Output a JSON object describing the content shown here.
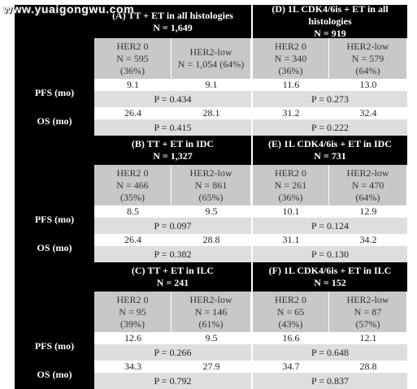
{
  "watermark": "www.yuaigongwu.com",
  "sections": [
    {
      "left": {
        "title": "(A) TT + ET in all histologies",
        "n": "N = 1,649",
        "her2_0": {
          "label": "HER2 0",
          "n": "N = 595",
          "pct": "(36%)"
        },
        "her2_low": {
          "label": "HER2-low",
          "n": "N = 1,054 (64%)"
        },
        "pfs": [
          "9.1",
          "9.1"
        ],
        "pfs_p": "P = 0.434",
        "os": [
          "26.4",
          "28.1"
        ],
        "os_p": "P = 0.415"
      },
      "right": {
        "title": "(D) 1L CDK4/6is + ET in all histologies",
        "n": "N = 919",
        "her2_0": {
          "label": "HER2 0",
          "n": "N = 340",
          "pct": "(36%)"
        },
        "her2_low": {
          "label": "HER2-low",
          "n": "N = 579",
          "pct": "(64%)"
        },
        "pfs": [
          "11.6",
          "13.0"
        ],
        "pfs_p": "P = 0.273",
        "os": [
          "31.2",
          "32.4"
        ],
        "os_p": "P = 0.222"
      }
    },
    {
      "left": {
        "title": "(B) TT + ET in IDC",
        "n": "N = 1,327",
        "her2_0": {
          "label": "HER2 0",
          "n": "N = 466",
          "pct": "(35%)"
        },
        "her2_low": {
          "label": "HER2-low",
          "n": "N = 861",
          "pct": "(65%)"
        },
        "pfs": [
          "8.5",
          "9.5"
        ],
        "pfs_p": "P = 0.097",
        "os": [
          "26.4",
          "28.8"
        ],
        "os_p": "P = 0.382"
      },
      "right": {
        "title": "(E) 1L CDK4/6is + ET in IDC",
        "n": "N = 731",
        "her2_0": {
          "label": "HER2 0",
          "n": "N = 261",
          "pct": "(36%)"
        },
        "her2_low": {
          "label": "HER2-low",
          "n": "N = 470",
          "pct": "(64%)"
        },
        "pfs": [
          "10.1",
          "12.9"
        ],
        "pfs_p": "P = 0.124",
        "os": [
          "31.1",
          "34.2"
        ],
        "os_p": "P = 0.130"
      }
    },
    {
      "left": {
        "title": "(C) TT + ET in ILC",
        "n": "N = 241",
        "her2_0": {
          "label": "HER2 0",
          "n": "N = 95",
          "pct": "(39%)"
        },
        "her2_low": {
          "label": "HER2-low",
          "n": "N = 146",
          "pct": "(61%)"
        },
        "pfs": [
          "12.6",
          "9.5"
        ],
        "pfs_p": "P = 0.266",
        "os": [
          "34.3",
          "27.9"
        ],
        "os_p": "P = 0.792"
      },
      "right": {
        "title": "(F) 1L CDK4/6is + ET in ILC",
        "n": "N = 152",
        "her2_0": {
          "label": "HER2 0",
          "n": "N = 65",
          "pct": "(43%)"
        },
        "her2_low": {
          "label": "HER2-low",
          "n": "N = 87",
          "pct": "(57%)"
        },
        "pfs": [
          "16.6",
          "12.1"
        ],
        "pfs_p": "P = 0.648",
        "os": [
          "34.7",
          "28.8"
        ],
        "os_p": "P = 0.837"
      }
    }
  ],
  "row_labels": {
    "pfs": "PFS (mo)",
    "os": "OS (mo)"
  }
}
